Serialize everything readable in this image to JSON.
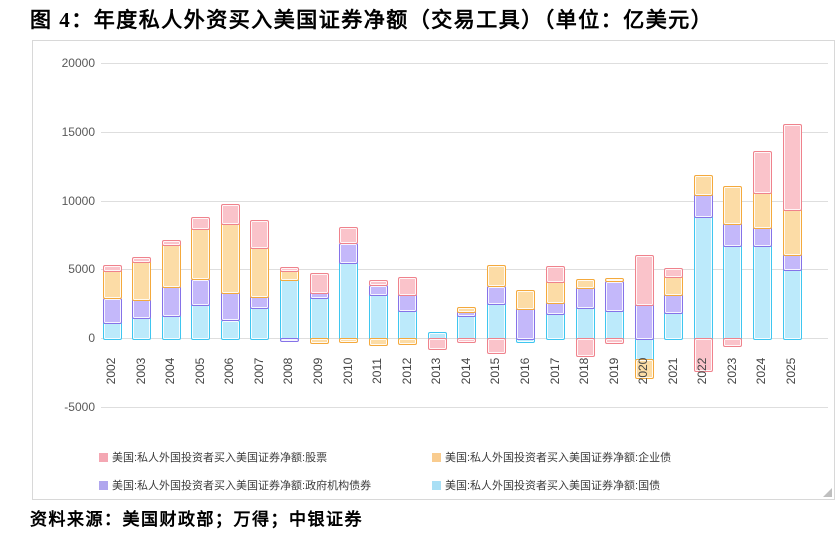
{
  "title": "图 4：年度私人外资买入美国证券净额（交易工具）（单位：亿美元）",
  "source": "资料来源：美国财政部；万得；中银证券",
  "chart_data": {
    "type": "bar",
    "stacked": true,
    "unit": "亿美元",
    "title": "年度私人外资买入美国证券净额（交易工具）",
    "xlabel": "",
    "ylabel": "",
    "ylim": [
      -5000,
      20000
    ],
    "y_ticks": [
      20000,
      15000,
      10000,
      5000,
      0,
      -5000
    ],
    "grid": true,
    "legend_position": "bottom",
    "categories": [
      "2002",
      "2003",
      "2004",
      "2005",
      "2006",
      "2007",
      "2008",
      "2009",
      "2010",
      "2011",
      "2012",
      "2013",
      "2014",
      "2015",
      "2016",
      "2017",
      "2018",
      "2019",
      "2020",
      "2021",
      "2022",
      "2023",
      "2024",
      "2025"
    ],
    "series": [
      {
        "name": "美国:私人外国投资者买入美国证券净额:国债",
        "short": "treasury",
        "fill": "#BCEAFB",
        "border": "#3EC6F0",
        "swatch": "#A9DFF5",
        "values": [
          1180,
          1500,
          1670,
          2460,
          1350,
          2240,
          4310,
          3000,
          5500,
          3200,
          2040,
          420,
          1670,
          2540,
          -250,
          1800,
          2240,
          2040,
          -1550,
          1860,
          8860,
          6750,
          6750,
          5000
        ]
      },
      {
        "name": "美国:私人外国投资者买入美国证券净额:政府机构债券",
        "short": "agency",
        "fill": "#C4B8FA",
        "border": "#8572E8",
        "swatch": "#B0A6EE",
        "values": [
          1770,
          1350,
          2090,
          1870,
          1970,
          840,
          -120,
          340,
          1450,
          690,
          1160,
          0,
          300,
          1280,
          2170,
          820,
          1480,
          2140,
          2500,
          1330,
          1600,
          1600,
          1350,
          1090
        ]
      },
      {
        "name": "美国:私人外国投资者买入美国证券净额:企业债",
        "short": "corporate",
        "fill": "#FCDCA6",
        "border": "#F4A93C",
        "swatch": "#F9CC8F",
        "values": [
          1970,
          2760,
          3080,
          3670,
          5050,
          3570,
          615,
          -320,
          -250,
          -400,
          -370,
          0,
          320,
          1500,
          1350,
          1550,
          590,
          200,
          -1300,
          1330,
          1400,
          2710,
          2540,
          3280
        ]
      },
      {
        "name": "美国:私人外国投资者买入美国证券净额:股票",
        "short": "stocks",
        "fill": "#FAC3CA",
        "border": "#EF828C",
        "swatch": "#F4A7B3",
        "values": [
          370,
          320,
          320,
          810,
          1350,
          1920,
          270,
          1420,
          1100,
          300,
          1210,
          -690,
          -250,
          -1030,
          0,
          1050,
          -1250,
          -300,
          3550,
          600,
          -2290,
          -480,
          2960,
          6210
        ]
      }
    ],
    "legend_order": [
      3,
      2,
      1,
      0
    ]
  }
}
